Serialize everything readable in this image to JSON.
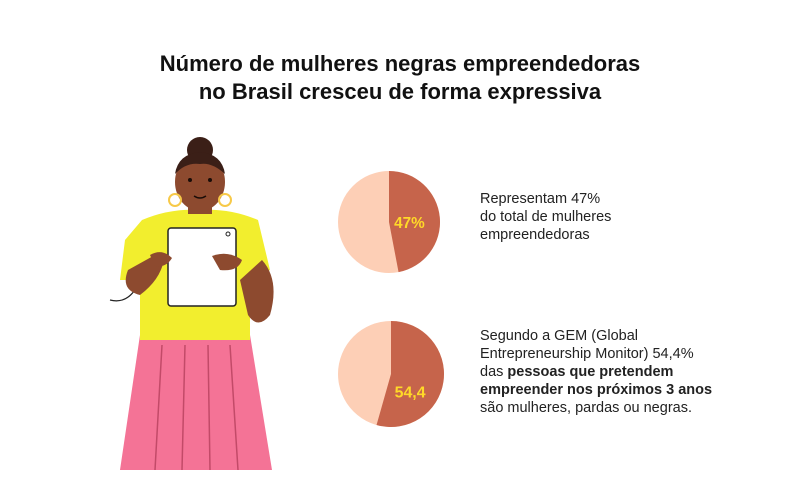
{
  "title": {
    "line1": "Número de mulheres negras empreendedoras",
    "line2": "no Brasil cresceu de forma expressiva"
  },
  "colors": {
    "slice": "#c6644b",
    "rest": "#fdcfb6",
    "label": "#ffd928",
    "shirt": "#f2ee2e",
    "pants": "#f47396",
    "skin": "#8d4a2f",
    "hair": "#3b1f17"
  },
  "chart_data": [
    {
      "type": "pie",
      "values": [
        47,
        53
      ],
      "data_label": "47%",
      "description": [
        "Representam 47%",
        "do total de mulheres",
        "empreendedoras"
      ]
    },
    {
      "type": "pie",
      "values": [
        54.4,
        45.6
      ],
      "data_label": "54,4",
      "description_lines": [
        {
          "text": "Segundo a GEM (Global",
          "bold": false
        },
        {
          "text": "Entrepreneurship Monitor) 54,4%",
          "bold": false
        },
        {
          "text": "das ",
          "bold_text": "pessoas que pretendem"
        },
        {
          "text": "empreender nos próximos 3 anos",
          "bold": true
        },
        {
          "text": "são mulheres, pardas ou negras.",
          "bold": false
        }
      ]
    }
  ]
}
